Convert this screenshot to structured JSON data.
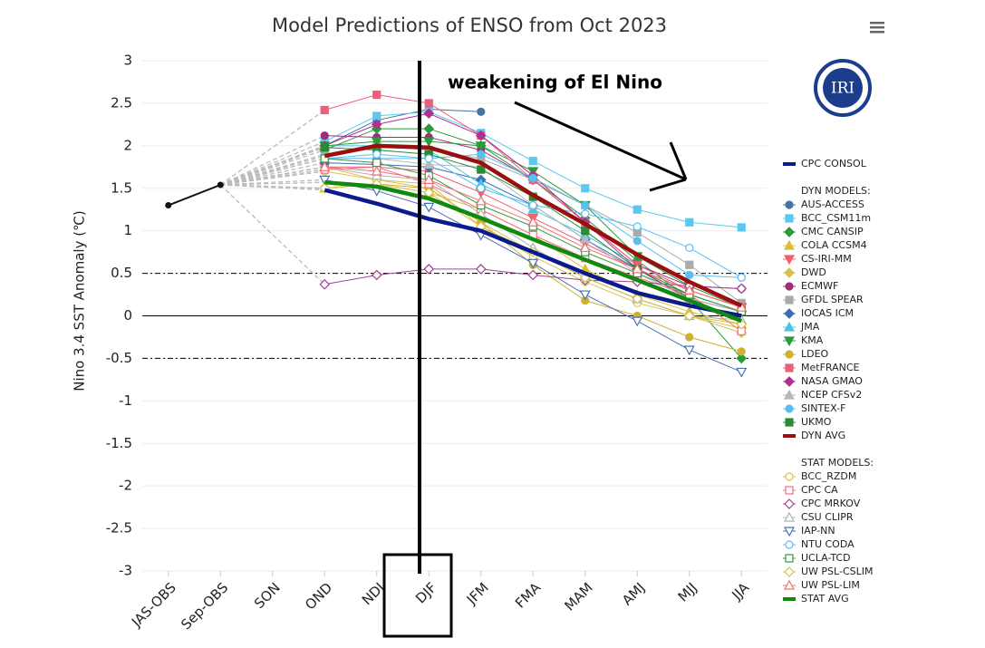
{
  "chart_data": {
    "type": "line",
    "title": "Model Predictions of ENSO from Oct 2023",
    "y_label": "Nino 3.4  SST Anomaly (℃)",
    "annotation": "weakening of El Nino",
    "logo": "IRI",
    "categories": [
      "JAS-OBS",
      "Sep-OBS",
      "SON",
      "OND",
      "NDJ",
      "DJF",
      "JFM",
      "FMA",
      "MAM",
      "AMJ",
      "MJJ",
      "JJA"
    ],
    "ylim": [
      -3,
      3
    ],
    "yticks": [
      3,
      2.5,
      2,
      1.5,
      1,
      0.5,
      0,
      -0.5,
      -1,
      -1.5,
      -2,
      -2.5,
      -3
    ],
    "grid": true,
    "hlines": [
      {
        "value": 0,
        "style": "solid"
      },
      {
        "value": 0.5,
        "style": "dashdot"
      },
      {
        "value": -0.5,
        "style": "dashdot"
      }
    ],
    "observed": {
      "color": "#111111",
      "values": [
        1.3,
        1.54,
        null,
        null,
        null,
        null,
        null,
        null,
        null,
        null,
        null,
        null
      ]
    },
    "groups": [
      {
        "series": [
          {
            "name": "CPC CONSOL",
            "color": "#0b1a8c",
            "thick": true,
            "values": [
              null,
              null,
              null,
              1.48,
              1.32,
              1.14,
              1.0,
              0.75,
              0.5,
              0.27,
              0.12,
              0.0
            ]
          }
        ]
      },
      {
        "title": "DYN MODELS:",
        "series": [
          {
            "name": "AUS-ACCESS",
            "color": "#4572a7",
            "marker": "circle",
            "filled": true,
            "values": [
              null,
              null,
              null,
              2.0,
              2.3,
              2.43,
              2.4,
              null,
              null,
              null,
              null,
              null
            ]
          },
          {
            "name": "BCC_CSM11m",
            "color": "#5bc8f0",
            "marker": "square",
            "filled": true,
            "values": [
              null,
              null,
              null,
              2.05,
              2.35,
              2.4,
              2.15,
              1.82,
              1.5,
              1.25,
              1.1,
              1.04
            ]
          },
          {
            "name": "CMC CANSIP",
            "color": "#2a9a3c",
            "marker": "diamond",
            "filled": true,
            "values": [
              null,
              null,
              null,
              1.95,
              2.2,
              2.2,
              2.0,
              1.6,
              1.15,
              0.65,
              0.2,
              -0.5
            ]
          },
          {
            "name": "COLA CCSM4",
            "color": "#d8c034",
            "marker": "triangle",
            "filled": true,
            "values": [
              null,
              null,
              null,
              1.5,
              1.55,
              1.45,
              1.25,
              0.95,
              0.55,
              0.25,
              0.05,
              -0.1
            ]
          },
          {
            "name": "CS-IRI-MM",
            "color": "#f06070",
            "marker": "triangle-down",
            "filled": true,
            "values": [
              null,
              null,
              null,
              1.75,
              1.75,
              1.7,
              1.45,
              1.15,
              0.85,
              0.55,
              0.3,
              0.1
            ]
          },
          {
            "name": "DWD",
            "color": "#d8c050",
            "marker": "diamond",
            "filled": true,
            "values": [
              null,
              null,
              null,
              1.75,
              1.6,
              1.5,
              1.1,
              0.75,
              0.45,
              0.2,
              0.0,
              -0.2
            ]
          },
          {
            "name": "ECMWF",
            "color": "#a02d7a",
            "marker": "circle",
            "filled": true,
            "values": [
              null,
              null,
              null,
              2.12,
              2.1,
              2.1,
              1.95,
              1.6,
              1.1,
              0.6,
              0.35,
              0.32
            ]
          },
          {
            "name": "GFDL SPEAR",
            "color": "#aaaaaa",
            "marker": "square",
            "filled": true,
            "values": [
              null,
              null,
              null,
              1.9,
              2.0,
              1.95,
              1.85,
              1.6,
              1.3,
              0.98,
              0.6,
              0.15
            ]
          },
          {
            "name": "IOCAS ICM",
            "color": "#3c6eb4",
            "marker": "diamond",
            "filled": true,
            "values": [
              null,
              null,
              null,
              1.8,
              1.78,
              1.75,
              1.6,
              1.3,
              0.9,
              0.55,
              0.2,
              0.05
            ]
          },
          {
            "name": "JMA",
            "color": "#44c8e0",
            "marker": "triangle",
            "filled": true,
            "values": [
              null,
              null,
              null,
              2.0,
              2.0,
              1.95,
              1.55,
              1.25,
              0.95,
              0.6,
              0.3,
              0.1
            ]
          },
          {
            "name": "KMA",
            "color": "#2a9a3c",
            "marker": "triangle-down",
            "filled": true,
            "values": [
              null,
              null,
              null,
              2.0,
              2.05,
              2.05,
              2.0,
              1.7,
              1.3,
              0.7,
              0.35,
              0.1
            ]
          },
          {
            "name": "LDEO",
            "color": "#d0b030",
            "marker": "circle",
            "filled": true,
            "values": [
              null,
              null,
              null,
              1.5,
              1.55,
              1.5,
              1.1,
              0.6,
              0.18,
              0.0,
              -0.25,
              -0.42
            ]
          },
          {
            "name": "MetFRANCE",
            "color": "#e8607a",
            "marker": "square",
            "filled": true,
            "values": [
              null,
              null,
              null,
              2.42,
              2.6,
              2.5,
              2.12,
              1.6,
              1.1,
              0.6,
              0.3,
              0.1
            ]
          },
          {
            "name": "NASA GMAO",
            "color": "#b03090",
            "marker": "diamond",
            "filled": true,
            "values": [
              null,
              null,
              null,
              2.0,
              2.25,
              2.38,
              2.12,
              1.65,
              1.1,
              0.55,
              0.2,
              0.05
            ]
          },
          {
            "name": "NCEP CFSv2",
            "color": "#b8b8b8",
            "marker": "triangle",
            "filled": true,
            "values": [
              null,
              null,
              null,
              1.85,
              1.85,
              1.78,
              1.75,
              1.3,
              0.9,
              0.5,
              0.2,
              0.05
            ]
          },
          {
            "name": "SINTEX-F",
            "color": "#58c0f0",
            "marker": "circle",
            "filled": true,
            "values": [
              null,
              null,
              null,
              1.85,
              1.85,
              1.85,
              1.9,
              1.62,
              1.3,
              0.88,
              0.48,
              0.45
            ]
          },
          {
            "name": "UKMO",
            "color": "#2a8a34",
            "marker": "square",
            "filled": true,
            "values": [
              null,
              null,
              null,
              1.98,
              1.95,
              1.9,
              1.72,
              1.4,
              1.0,
              0.55,
              0.25,
              0.05
            ]
          },
          {
            "name": "DYN AVG",
            "color": "#9a0e0e",
            "thick": true,
            "values": [
              null,
              null,
              null,
              1.88,
              2.0,
              1.98,
              1.8,
              1.42,
              1.08,
              0.72,
              0.4,
              0.12
            ]
          }
        ]
      },
      {
        "title": "STAT MODELS:",
        "series": [
          {
            "name": "BCC_RZDM",
            "color": "#d8c050",
            "marker": "circle",
            "filled": false,
            "values": [
              null,
              null,
              null,
              1.7,
              1.6,
              1.55,
              1.05,
              0.7,
              0.4,
              0.15,
              0.0,
              -0.15
            ]
          },
          {
            "name": "CPC CA",
            "color": "#f07080",
            "marker": "square",
            "filled": false,
            "values": [
              null,
              null,
              null,
              1.72,
              1.75,
              1.55,
              1.25,
              0.95,
              0.68,
              0.45,
              0.25,
              -0.18
            ]
          },
          {
            "name": "CPC MRKOV",
            "color": "#a04090",
            "marker": "diamond",
            "filled": false,
            "values": [
              null,
              null,
              null,
              0.37,
              0.48,
              0.55,
              0.55,
              0.48,
              0.42,
              0.4,
              0.35,
              0.32
            ]
          },
          {
            "name": "CSU CLIPR",
            "color": "#b0b0b0",
            "marker": "triangle",
            "filled": false,
            "values": [
              null,
              null,
              null,
              1.75,
              1.65,
              1.6,
              1.2,
              0.8,
              0.45,
              0.2,
              0.0,
              -0.05
            ]
          },
          {
            "name": "IAP-NN",
            "color": "#4a70b0",
            "marker": "triangle-down",
            "filled": false,
            "values": [
              null,
              null,
              null,
              1.6,
              1.47,
              1.28,
              0.95,
              0.62,
              0.25,
              -0.06,
              -0.4,
              -0.66
            ]
          },
          {
            "name": "NTU CODA",
            "color": "#58c0f0",
            "marker": "circle",
            "filled": false,
            "values": [
              null,
              null,
              null,
              1.85,
              1.9,
              1.85,
              1.5,
              1.3,
              1.2,
              1.05,
              0.8,
              0.45
            ]
          },
          {
            "name": "UCLA-TCD",
            "color": "#3a9a40",
            "marker": "square",
            "filled": false,
            "values": [
              null,
              null,
              null,
              1.85,
              1.8,
              1.65,
              1.3,
              1.05,
              0.75,
              0.5,
              0.25,
              0.05
            ]
          },
          {
            "name": "UW PSL-CSLIM",
            "color": "#d8c050",
            "marker": "diamond",
            "filled": false,
            "values": [
              null,
              null,
              null,
              1.5,
              1.55,
              1.45,
              1.05,
              0.75,
              0.45,
              0.2,
              0.0,
              -0.1
            ]
          },
          {
            "name": "UW PSL-LIM",
            "color": "#f07070",
            "marker": "triangle",
            "filled": false,
            "values": [
              null,
              null,
              null,
              1.75,
              1.7,
              1.6,
              1.35,
              1.1,
              0.8,
              0.55,
              0.3,
              0.1
            ]
          },
          {
            "name": "STAT AVG",
            "color": "#0f8a0f",
            "thick": true,
            "values": [
              null,
              null,
              null,
              1.57,
              1.52,
              1.38,
              1.15,
              0.9,
              0.66,
              0.42,
              0.18,
              -0.06
            ]
          }
        ]
      }
    ]
  }
}
